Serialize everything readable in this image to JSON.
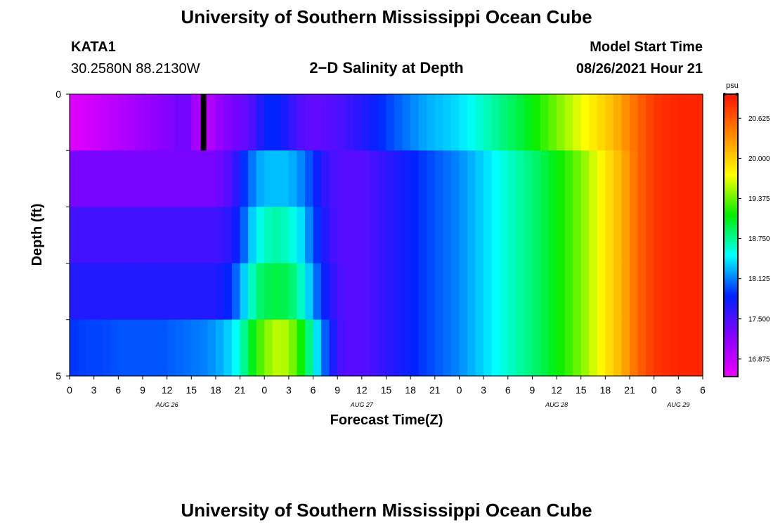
{
  "page": {
    "top_title": "University of Southern Mississippi Ocean Cube",
    "bottom_title": "University of Southern Mississippi Ocean Cube",
    "station_id": "KATA1",
    "station_coords": "30.2580N  88.2130W",
    "model_label": "Model Start Time",
    "model_time": "08/26/2021 Hour 21"
  },
  "colors": {
    "colormap": [
      "#ee00ff",
      "#8800ff",
      "#0022ff",
      "#00ffff",
      "#00ee00",
      "#ffff00",
      "#ff8800",
      "#ff1100"
    ],
    "frame": "#000000",
    "marker": "#000000"
  },
  "chart_data": {
    "type": "heatmap",
    "title": "2−D Salinity at Depth",
    "xlabel": "Forecast Time(Z)",
    "ylabel": "Depth (ft)",
    "x_tick_labels": [
      "0",
      "3",
      "6",
      "9",
      "12",
      "15",
      "18",
      "21",
      "0",
      "3",
      "6",
      "9",
      "12",
      "15",
      "18",
      "21",
      "0",
      "3",
      "6",
      "9",
      "12",
      "15",
      "18",
      "21",
      "0",
      "3",
      "6"
    ],
    "x_hours": [
      0,
      3,
      6,
      9,
      12,
      15,
      18,
      21,
      24,
      27,
      30,
      33,
      36,
      39,
      42,
      45,
      48,
      51,
      54,
      57,
      60,
      63,
      66,
      69,
      72,
      75,
      78
    ],
    "x_range_hours": [
      0,
      78
    ],
    "date_labels": [
      {
        "text": "AUG 26",
        "hour": 12
      },
      {
        "text": "AUG 27",
        "hour": 36
      },
      {
        "text": "AUG 28",
        "hour": 60
      },
      {
        "text": "AUG 29",
        "hour": 75
      }
    ],
    "y_tick_labels": [
      "0",
      "5"
    ],
    "y_range": [
      0,
      5
    ],
    "depth_layers": [
      0,
      1,
      2,
      3,
      4
    ],
    "colorbar": {
      "unit": "psu",
      "min": 16.6,
      "max": 21.0,
      "tick_labels": [
        "20.625",
        "20.000",
        "19.375",
        "18.750",
        "18.125",
        "17.500",
        "16.875"
      ],
      "tick_values": [
        20.625,
        20.0,
        19.375,
        18.75,
        18.125,
        17.5,
        16.875
      ]
    },
    "marker_hour": 16.5,
    "profile_hours": [
      0,
      2,
      4,
      6,
      8,
      10,
      12,
      13,
      14,
      15,
      16,
      17,
      18,
      19,
      20,
      21,
      22,
      23,
      24,
      25,
      26,
      27,
      28,
      29,
      30,
      31,
      32,
      33,
      34,
      36,
      40,
      44,
      48,
      50,
      52,
      54,
      56,
      58,
      60,
      62,
      64,
      65,
      66,
      67,
      68,
      69,
      70,
      72,
      75,
      78
    ],
    "profiles": [
      [
        16.7,
        16.75,
        16.85,
        16.95,
        17.05,
        17.15,
        17.25,
        17.3,
        17.35,
        17.3,
        16.8,
        16.9,
        17.1,
        17.2,
        17.3,
        17.35,
        17.4,
        17.6,
        17.8,
        17.9,
        17.8,
        17.7,
        17.5,
        17.45,
        17.4,
        17.42,
        17.45,
        17.5,
        17.55,
        17.7,
        18.0,
        18.25,
        18.4,
        18.55,
        18.7,
        18.85,
        19.0,
        19.2,
        19.4,
        19.6,
        19.8,
        19.9,
        20.0,
        20.1,
        20.25,
        20.4,
        20.55,
        20.8,
        20.9,
        20.9
      ],
      [
        17.3,
        17.3,
        17.3,
        17.3,
        17.3,
        17.3,
        17.3,
        17.3,
        17.3,
        17.3,
        17.3,
        17.3,
        17.3,
        17.4,
        17.5,
        17.8,
        18.0,
        18.2,
        18.3,
        18.3,
        18.3,
        18.3,
        18.2,
        18.1,
        17.9,
        17.7,
        17.55,
        17.5,
        17.45,
        17.45,
        17.7,
        17.95,
        18.15,
        18.3,
        18.45,
        18.6,
        18.75,
        18.9,
        19.1,
        19.3,
        19.55,
        19.7,
        19.85,
        20.0,
        20.15,
        20.35,
        20.55,
        20.8,
        20.9,
        20.9
      ],
      [
        17.55,
        17.55,
        17.55,
        17.55,
        17.55,
        17.55,
        17.55,
        17.55,
        17.55,
        17.55,
        17.55,
        17.55,
        17.55,
        17.6,
        17.7,
        17.9,
        18.2,
        18.5,
        18.6,
        18.7,
        18.7,
        18.6,
        18.5,
        18.3,
        18.0,
        17.8,
        17.6,
        17.5,
        17.45,
        17.45,
        17.7,
        17.95,
        18.15,
        18.3,
        18.45,
        18.6,
        18.75,
        18.9,
        19.1,
        19.3,
        19.55,
        19.7,
        19.85,
        20.0,
        20.15,
        20.35,
        20.55,
        20.8,
        20.9,
        20.9
      ],
      [
        17.7,
        17.7,
        17.7,
        17.7,
        17.7,
        17.7,
        17.7,
        17.7,
        17.7,
        17.7,
        17.7,
        17.7,
        17.7,
        17.8,
        17.9,
        18.2,
        18.5,
        18.8,
        18.9,
        18.95,
        18.95,
        18.9,
        18.75,
        18.5,
        18.2,
        17.9,
        17.7,
        17.55,
        17.45,
        17.45,
        17.7,
        17.95,
        18.15,
        18.3,
        18.45,
        18.6,
        18.75,
        18.9,
        19.1,
        19.3,
        19.55,
        19.7,
        19.85,
        20.0,
        20.15,
        20.35,
        20.55,
        20.8,
        20.9,
        20.9
      ],
      [
        17.9,
        17.95,
        17.95,
        18.0,
        18.0,
        18.0,
        18.0,
        18.05,
        18.05,
        18.1,
        18.1,
        18.15,
        18.2,
        18.3,
        18.4,
        18.6,
        18.9,
        19.2,
        19.4,
        19.55,
        19.6,
        19.5,
        19.3,
        19.0,
        18.6,
        18.2,
        17.85,
        17.6,
        17.45,
        17.45,
        17.7,
        17.95,
        18.15,
        18.3,
        18.45,
        18.6,
        18.75,
        18.9,
        19.1,
        19.3,
        19.55,
        19.7,
        19.85,
        20.0,
        20.15,
        20.35,
        20.55,
        20.8,
        20.9,
        20.9
      ]
    ]
  }
}
